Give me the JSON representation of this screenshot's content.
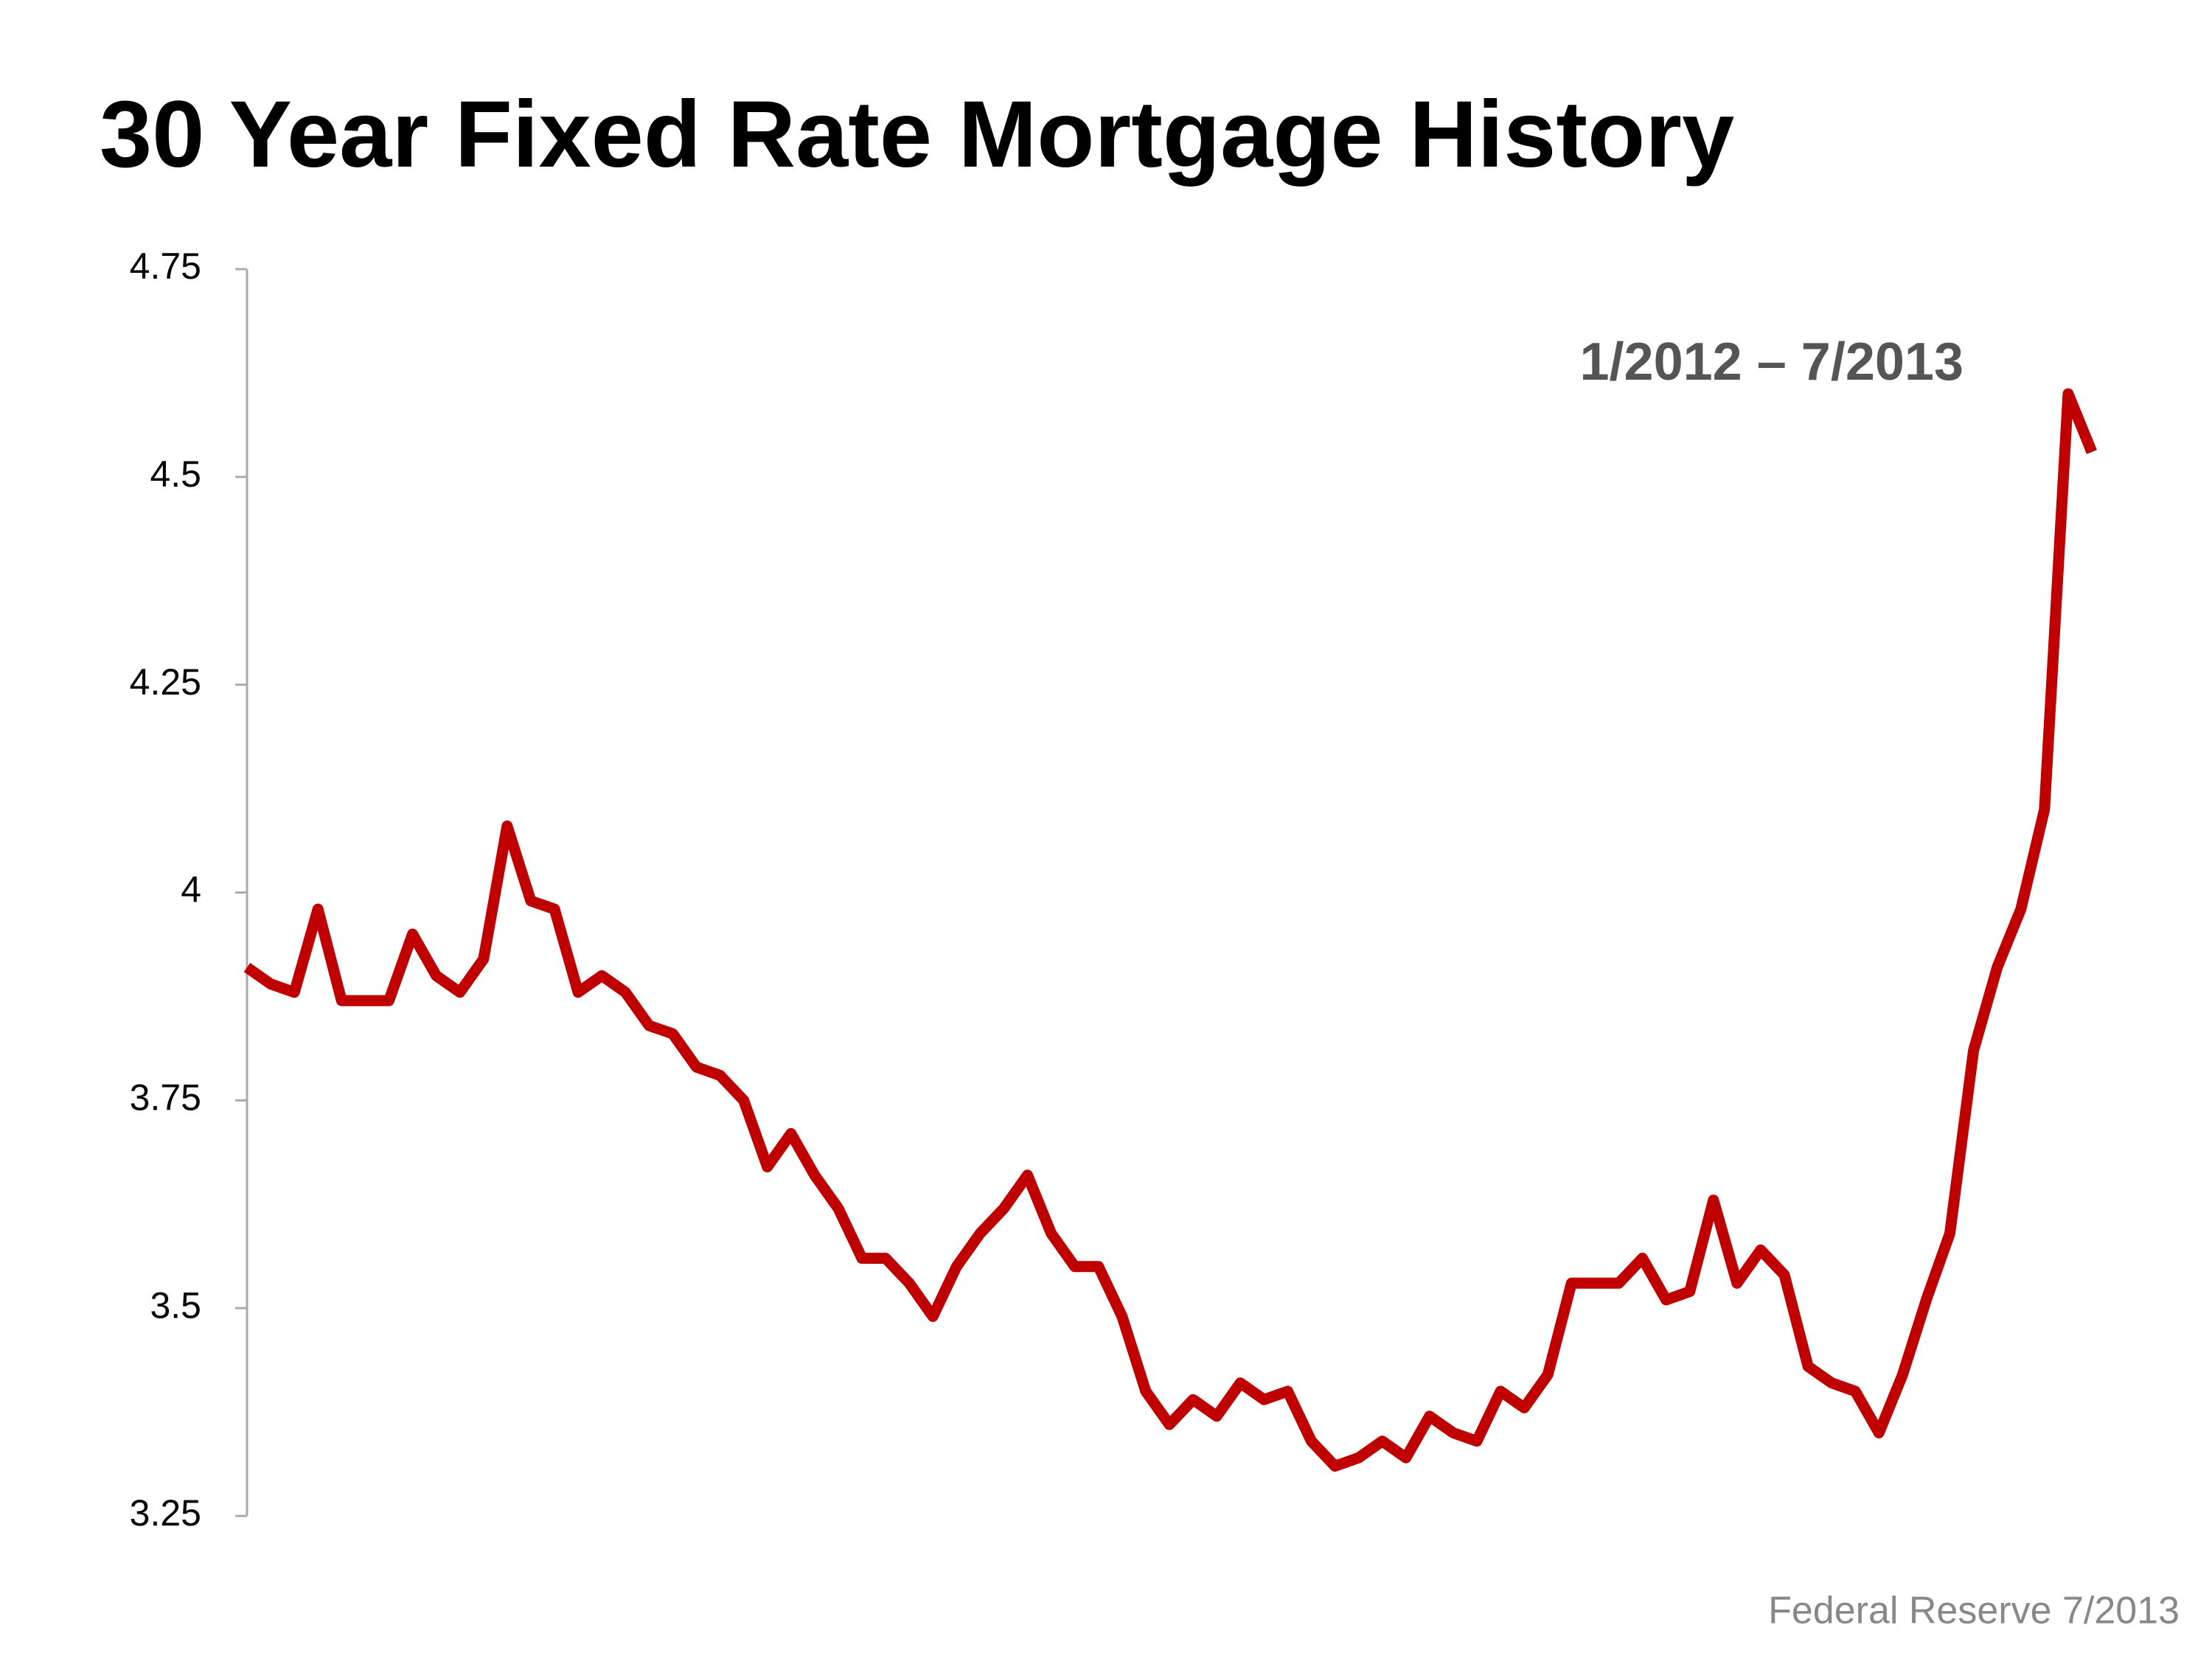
{
  "chart_data": {
    "type": "line",
    "title": "30 Year Fixed Rate Mortgage History",
    "subtitle": "1/2012 – 7/2013",
    "source": "Federal Reserve 7/2013",
    "values": [
      3.91,
      3.89,
      3.88,
      3.98,
      3.87,
      3.87,
      3.87,
      3.95,
      3.9,
      3.88,
      3.92,
      4.08,
      3.99,
      3.98,
      3.88,
      3.9,
      3.88,
      3.84,
      3.83,
      3.79,
      3.78,
      3.75,
      3.67,
      3.71,
      3.66,
      3.62,
      3.56,
      3.56,
      3.53,
      3.49,
      3.55,
      3.59,
      3.62,
      3.66,
      3.59,
      3.55,
      3.55,
      3.49,
      3.4,
      3.36,
      3.39,
      3.37,
      3.41,
      3.39,
      3.4,
      3.34,
      3.31,
      3.32,
      3.34,
      3.32,
      3.37,
      3.35,
      3.34,
      3.4,
      3.38,
      3.42,
      3.53,
      3.53,
      3.53,
      3.56,
      3.51,
      3.52,
      3.63,
      3.53,
      3.57,
      3.54,
      3.43,
      3.41,
      3.4,
      3.35,
      3.42,
      3.51,
      3.59,
      3.81,
      3.91,
      3.98,
      4.1,
      4.6,
      4.53
    ],
    "color": "#c00000",
    "ylim": [
      3.25,
      4.75
    ],
    "yticks": [
      {
        "value": 3.25,
        "label": "3.25"
      },
      {
        "value": 3.5,
        "label": "3.5"
      },
      {
        "value": 3.75,
        "label": "3.75"
      },
      {
        "value": 4,
        "label": "4"
      },
      {
        "value": 4.25,
        "label": "4.25"
      },
      {
        "value": 4.5,
        "label": "4.5"
      },
      {
        "value": 4.75,
        "label": "4.75"
      }
    ],
    "grid": false
  }
}
